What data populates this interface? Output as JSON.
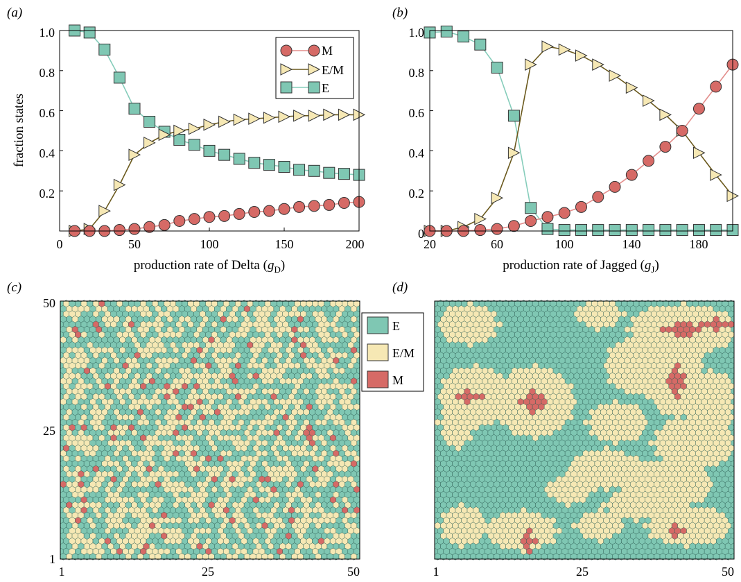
{
  "panels": [
    {
      "label": "(a)"
    },
    {
      "label": "(b)"
    },
    {
      "label": "(c)"
    },
    {
      "label": "(d)"
    }
  ],
  "colors": {
    "M": "#d66a66",
    "E/M": "#f6e8b4",
    "E": "#7fc7b3",
    "M_line": "#e38e8c",
    "EM_line": "#6b5a1e",
    "E_line": "#86cdbb",
    "hex_edge": "#2f5f55"
  },
  "chart_data": [
    {
      "type": "line",
      "panel": "(a)",
      "xlabel": "production rate of Delta (",
      "xlabel_sym": "g",
      "xlabel_sub": "D",
      "xlabel_end": ")",
      "ylabel": "fraction states",
      "xlim": [
        0,
        200
      ],
      "ylim": [
        0,
        1
      ],
      "xticks": [
        "0",
        "50",
        "100",
        "150",
        "200"
      ],
      "yticks": [
        "0.2",
        "0.4",
        "0.6",
        "0.8",
        "1.0"
      ],
      "legend": "top-right",
      "x": [
        10,
        20,
        30,
        40,
        50,
        60,
        70,
        80,
        90,
        100,
        110,
        120,
        130,
        140,
        150,
        160,
        170,
        180,
        190,
        200
      ],
      "series": [
        {
          "name": "M",
          "marker": "circle",
          "values": [
            0.0,
            0.0,
            0.0,
            0.005,
            0.01,
            0.02,
            0.03,
            0.05,
            0.06,
            0.07,
            0.075,
            0.085,
            0.095,
            0.1,
            0.11,
            0.12,
            0.125,
            0.13,
            0.14,
            0.145
          ]
        },
        {
          "name": "E/M",
          "marker": "triangle-right",
          "values": [
            0.0,
            0.01,
            0.1,
            0.23,
            0.38,
            0.44,
            0.48,
            0.5,
            0.51,
            0.53,
            0.545,
            0.555,
            0.56,
            0.565,
            0.57,
            0.575,
            0.575,
            0.58,
            0.58,
            0.58
          ]
        },
        {
          "name": "E",
          "marker": "square",
          "values": [
            1.0,
            0.99,
            0.905,
            0.765,
            0.61,
            0.545,
            0.495,
            0.455,
            0.43,
            0.4,
            0.38,
            0.36,
            0.34,
            0.33,
            0.32,
            0.305,
            0.3,
            0.29,
            0.285,
            0.28
          ]
        }
      ]
    },
    {
      "type": "line",
      "panel": "(b)",
      "xlabel": "production rate of Jagged (",
      "xlabel_sym": "g",
      "xlabel_sub": "J",
      "xlabel_end": ")",
      "xlim": [
        20,
        200
      ],
      "ylim": [
        0,
        1
      ],
      "xticks": [
        "20",
        "60",
        "100",
        "140",
        "180"
      ],
      "yticks": [
        "0",
        "0.2",
        "0.4",
        "0.6",
        "0.8",
        "1.0"
      ],
      "x": [
        20,
        30,
        40,
        50,
        60,
        70,
        80,
        90,
        100,
        110,
        120,
        130,
        140,
        150,
        160,
        170,
        180,
        190,
        200
      ],
      "series": [
        {
          "name": "M",
          "marker": "circle",
          "values": [
            0.0,
            0.0,
            0.0,
            0.005,
            0.01,
            0.025,
            0.05,
            0.07,
            0.09,
            0.12,
            0.17,
            0.22,
            0.28,
            0.35,
            0.42,
            0.5,
            0.61,
            0.72,
            0.83
          ]
        },
        {
          "name": "E/M",
          "marker": "triangle-right",
          "values": [
            0.0,
            0.0,
            0.02,
            0.06,
            0.165,
            0.39,
            0.83,
            0.92,
            0.905,
            0.875,
            0.83,
            0.775,
            0.715,
            0.65,
            0.58,
            0.5,
            0.39,
            0.28,
            0.175
          ]
        },
        {
          "name": "E",
          "marker": "square",
          "values": [
            0.99,
            0.995,
            0.97,
            0.93,
            0.815,
            0.575,
            0.115,
            0.01,
            0.005,
            0.005,
            0.005,
            0.005,
            0.005,
            0.005,
            0.005,
            0.005,
            0.005,
            0.005,
            0.005
          ]
        }
      ]
    },
    {
      "type": "heatmap",
      "panel": "(c)",
      "grid": [
        50,
        50
      ],
      "xticks": [
        "1",
        "25",
        "50"
      ],
      "yticks": [
        "1",
        "25",
        "50"
      ],
      "categories": [
        "E",
        "E/M",
        "M"
      ],
      "pattern": "mixed",
      "approx_fraction": {
        "E": 0.48,
        "E/M": 0.48,
        "M": 0.04
      }
    },
    {
      "type": "heatmap",
      "panel": "(d)",
      "grid": [
        50,
        50
      ],
      "xticks": [
        "1",
        "25",
        "50"
      ],
      "categories": [
        "E",
        "E/M",
        "M"
      ],
      "pattern": "clustered",
      "legend": [
        "E",
        "E/M",
        "M"
      ]
    }
  ]
}
